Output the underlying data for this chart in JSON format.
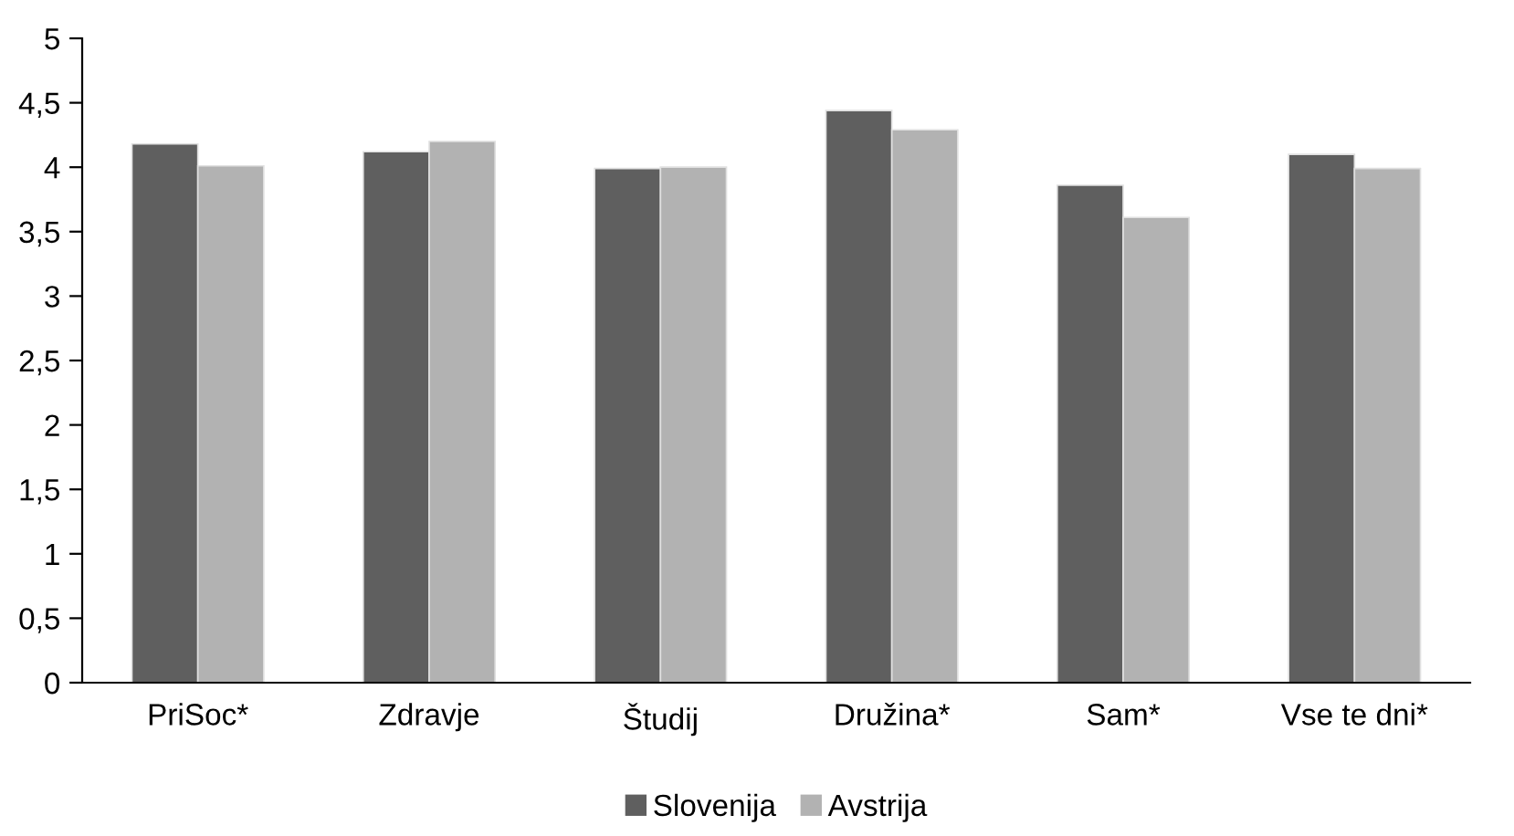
{
  "chart_data": {
    "type": "bar",
    "categories": [
      "PriSoc*",
      "Zdravje",
      "Študij",
      "Družina*",
      "Sam*",
      "Vse te dni*"
    ],
    "series": [
      {
        "name": "Slovenija",
        "color": "#5f5f5f",
        "values": [
          4.18,
          4.12,
          3.99,
          4.44,
          3.86,
          4.1
        ]
      },
      {
        "name": "Avstrija",
        "color": "#b2b2b2",
        "values": [
          4.01,
          4.2,
          4.0,
          4.29,
          3.61,
          3.99
        ]
      }
    ],
    "ylim": [
      0,
      5
    ],
    "yticks": [
      0,
      {
        "value": 0.5,
        "label": "0,5"
      },
      1,
      {
        "value": 1.5,
        "label": "1,5"
      },
      2,
      {
        "value": 2.5,
        "label": "2,5"
      },
      3,
      {
        "value": 3.5,
        "label": "3,5"
      },
      4,
      {
        "value": 4.5,
        "label": "4,5"
      },
      5
    ],
    "grid": false,
    "legend": "bottom"
  }
}
